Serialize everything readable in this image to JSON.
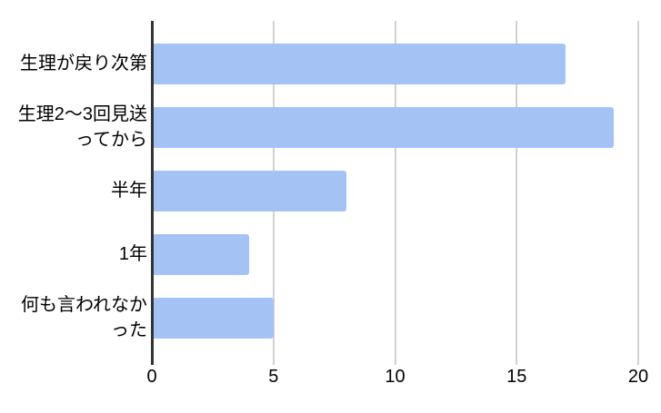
{
  "chart_data": {
    "type": "bar",
    "orientation": "horizontal",
    "title": "",
    "xlabel": "",
    "ylabel": "",
    "categories": [
      "生理が戻り次第",
      "生理2〜3回見送\nってから",
      "半年",
      "1年",
      "何も言われなか\nった"
    ],
    "values": [
      17,
      19,
      8,
      4,
      5
    ],
    "x_ticks": [
      "0",
      "5",
      "10",
      "15",
      "20"
    ],
    "xlim": [
      0,
      20
    ],
    "grid": true,
    "legend": "none",
    "colors": {
      "bar": "#a4c2f4",
      "axis_line": "#333333",
      "gridline": "#d2d2d2",
      "text": "#000000",
      "background": "#ffffff"
    }
  }
}
